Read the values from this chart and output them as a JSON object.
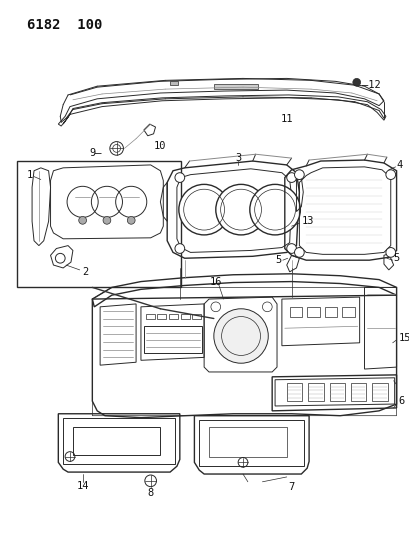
{
  "title_code": "6182 100",
  "bg_color": "#ffffff",
  "lc": "#2a2a2a",
  "lc_light": "#888888",
  "fig_width": 4.1,
  "fig_height": 5.33,
  "dpi": 100,
  "label_fs": 7.5,
  "title_fs": 10
}
